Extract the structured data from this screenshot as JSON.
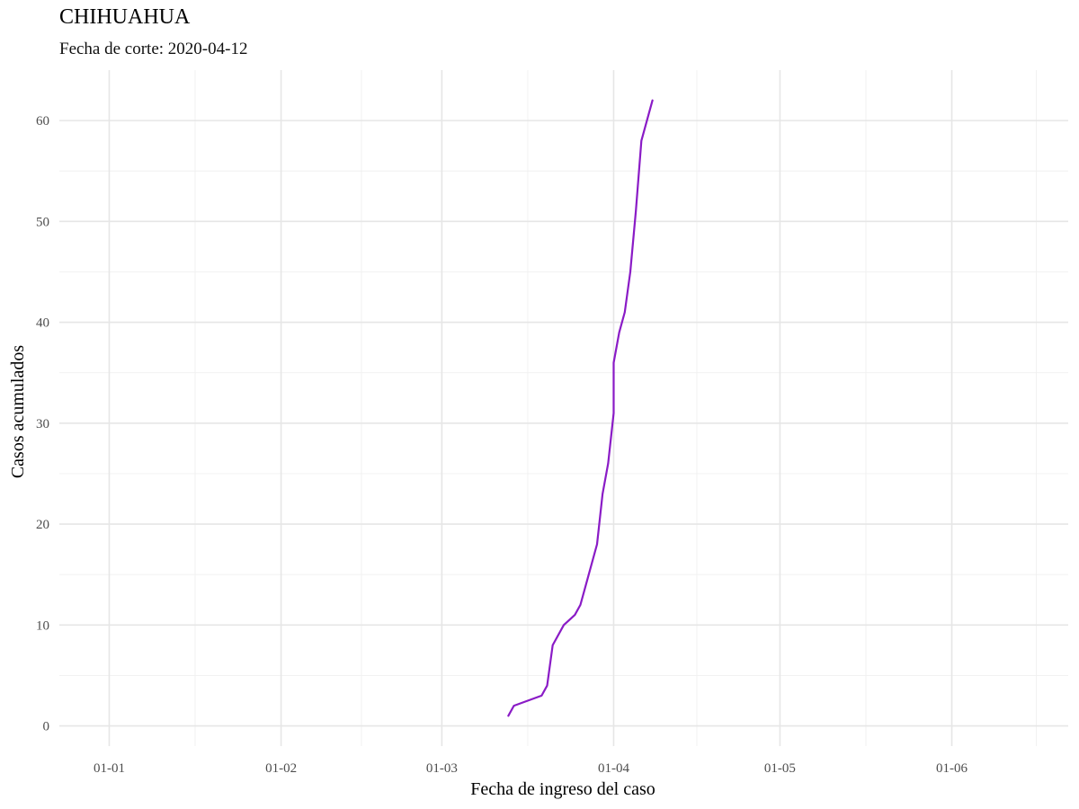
{
  "chart_data": {
    "type": "line",
    "title": "CHIHUAHUA",
    "subtitle": "Fecha de corte: 2020-04-12",
    "xlabel": "Fecha de ingreso del caso",
    "ylabel": "Casos acumulados",
    "x_axis": {
      "type": "date",
      "range": [
        "2019-12-23",
        "2020-06-22"
      ],
      "ticks": [
        {
          "date": "2020-01-01",
          "label": "01-01"
        },
        {
          "date": "2020-02-01",
          "label": "01-02"
        },
        {
          "date": "2020-03-01",
          "label": "01-03"
        },
        {
          "date": "2020-04-01",
          "label": "01-04"
        },
        {
          "date": "2020-05-01",
          "label": "01-05"
        },
        {
          "date": "2020-06-01",
          "label": "01-06"
        }
      ]
    },
    "y_axis": {
      "range": [
        -2,
        65
      ],
      "ticks": [
        0,
        10,
        20,
        30,
        40,
        50,
        60
      ]
    },
    "grid": true,
    "series": [
      {
        "color": "#8a1bc6",
        "points": [
          {
            "x": "2020-03-13",
            "y": 1
          },
          {
            "x": "2020-03-14",
            "y": 2
          },
          {
            "x": "2020-03-19",
            "y": 3
          },
          {
            "x": "2020-03-20",
            "y": 4
          },
          {
            "x": "2020-03-21",
            "y": 8
          },
          {
            "x": "2020-03-23",
            "y": 10
          },
          {
            "x": "2020-03-25",
            "y": 11
          },
          {
            "x": "2020-03-26",
            "y": 12
          },
          {
            "x": "2020-03-27",
            "y": 14
          },
          {
            "x": "2020-03-29",
            "y": 18
          },
          {
            "x": "2020-03-30",
            "y": 23
          },
          {
            "x": "2020-03-31",
            "y": 26
          },
          {
            "x": "2020-04-01",
            "y": 31
          },
          {
            "x": "2020-04-01",
            "y": 36
          },
          {
            "x": "2020-04-02",
            "y": 39
          },
          {
            "x": "2020-04-03",
            "y": 41
          },
          {
            "x": "2020-04-04",
            "y": 45
          },
          {
            "x": "2020-04-05",
            "y": 51
          },
          {
            "x": "2020-04-06",
            "y": 58
          },
          {
            "x": "2020-04-08",
            "y": 62
          }
        ]
      }
    ]
  }
}
